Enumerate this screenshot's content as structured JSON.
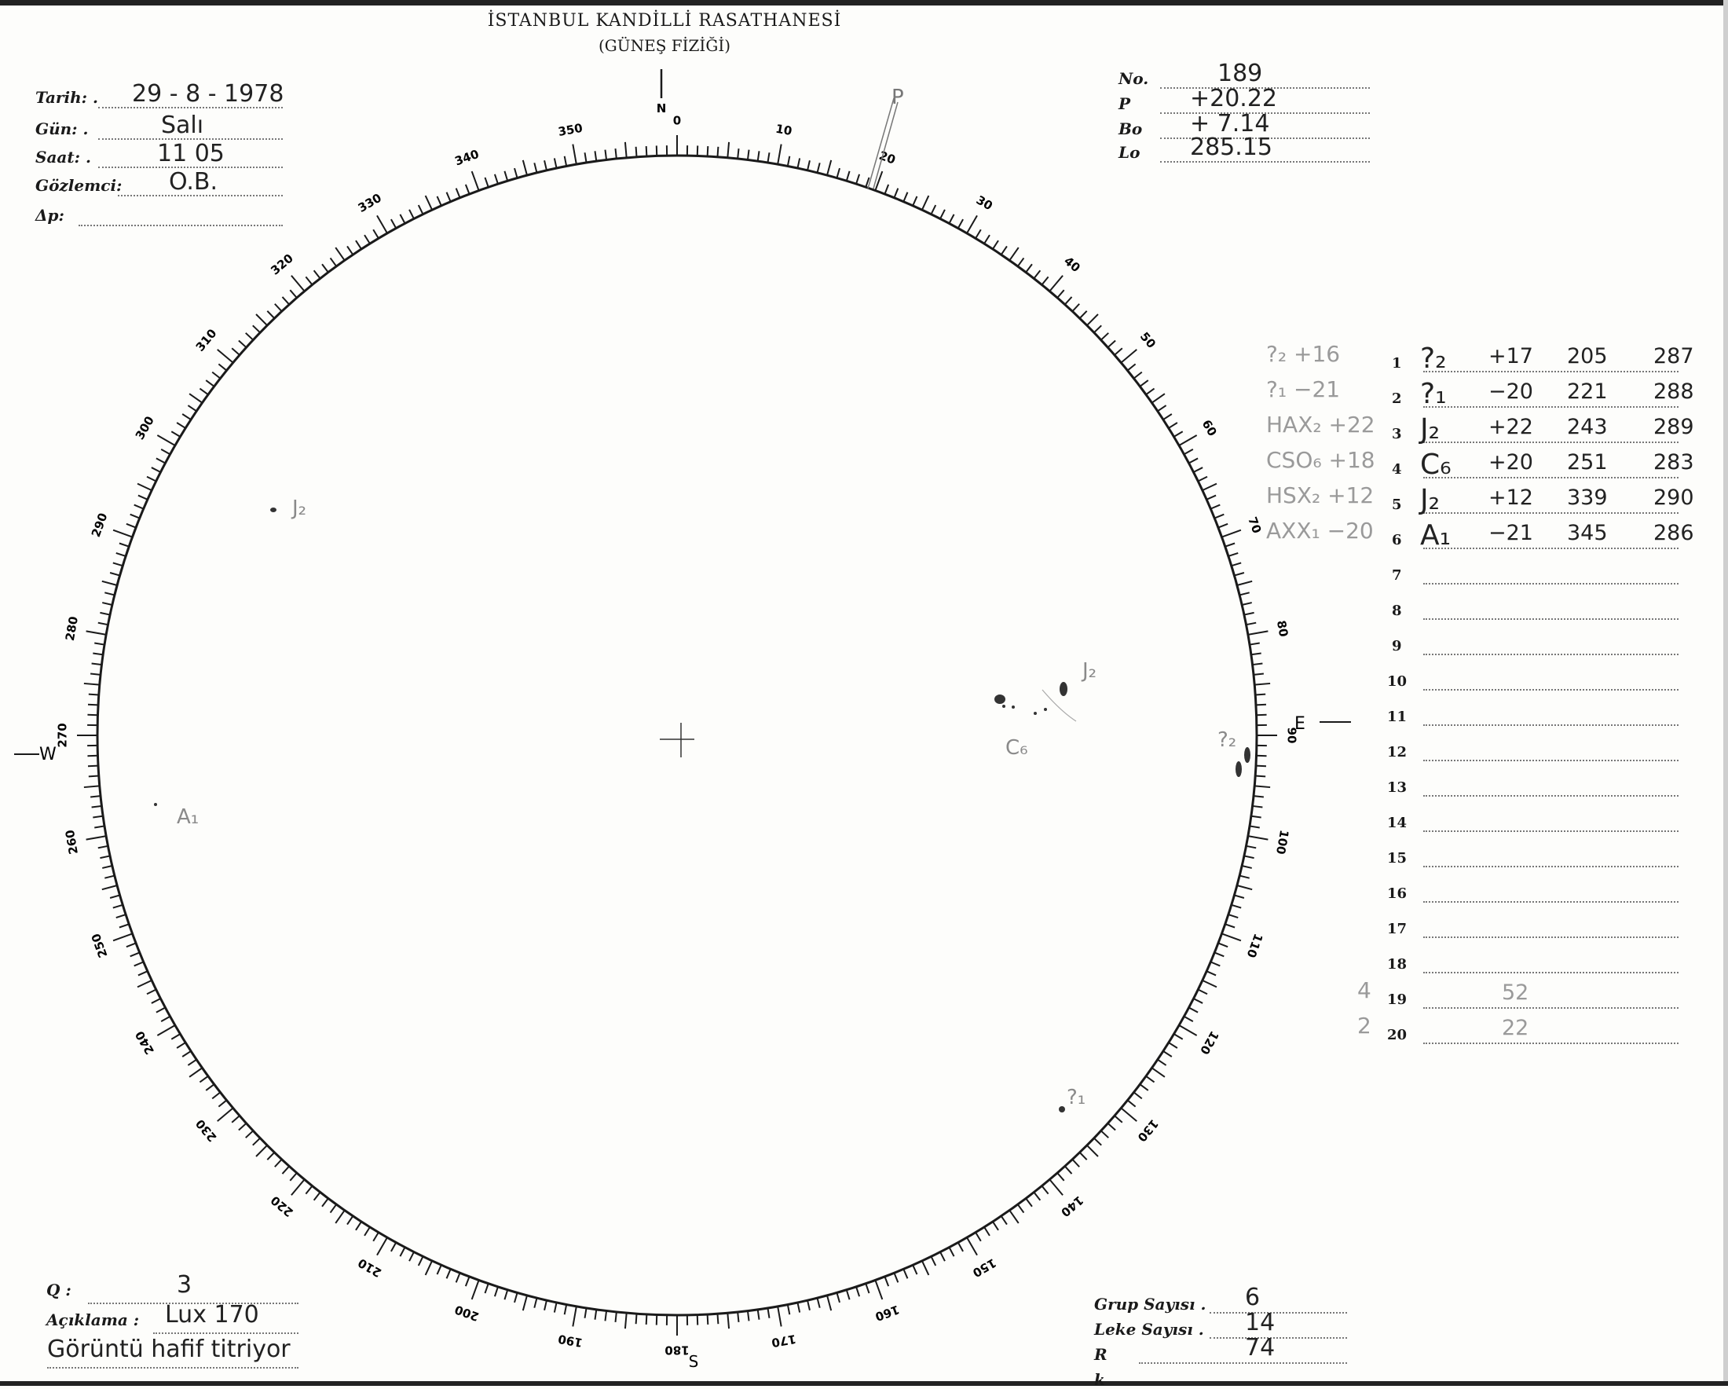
{
  "header": {
    "title": "İSTANBUL KANDİLLİ RASATHANESİ",
    "subtitle": "(GÜNEŞ FİZİĞİ)"
  },
  "left_fields": [
    {
      "label": "Tarih: .",
      "value": "29 - 8 - 1978"
    },
    {
      "label": "Gün: .",
      "value": "Salı"
    },
    {
      "label": "Saat: .",
      "value": "11 05"
    },
    {
      "label": "Gözlemci:",
      "value": "O.B."
    },
    {
      "label": "Δp:",
      "value": ""
    }
  ],
  "right_fields": [
    {
      "label": "No.",
      "value": "189"
    },
    {
      "label": "P",
      "value": "+20.22"
    },
    {
      "label": "Bo",
      "value": "+ 7.14"
    },
    {
      "label": "Lo",
      "value": "285.15"
    }
  ],
  "table": {
    "rows": [
      {
        "n": "1",
        "note": "?₂ +16",
        "group": "?₂",
        "lat": "+17",
        "c2": "205",
        "c3": "287"
      },
      {
        "n": "2",
        "note": "?₁ −21",
        "group": "?₁",
        "lat": "−20",
        "c2": "221",
        "c3": "288"
      },
      {
        "n": "3",
        "note": "HAX₂ +22",
        "group": "J₂",
        "lat": "+22",
        "c2": "243",
        "c3": "289"
      },
      {
        "n": "4",
        "note": "CSO₆ +18",
        "group": "C₆",
        "lat": "+20",
        "c2": "251",
        "c3": "283"
      },
      {
        "n": "5",
        "note": "HSX₂ +12",
        "group": "J₂",
        "lat": "+12",
        "c2": "339",
        "c3": "290"
      },
      {
        "n": "6",
        "note": "AXX₁ −20",
        "group": "A₁",
        "lat": "−21",
        "c2": "345",
        "c3": "286"
      },
      {
        "n": "7"
      },
      {
        "n": "8"
      },
      {
        "n": "9"
      },
      {
        "n": "10"
      },
      {
        "n": "11"
      },
      {
        "n": "12"
      },
      {
        "n": "13"
      },
      {
        "n": "14"
      },
      {
        "n": "15"
      },
      {
        "n": "16"
      },
      {
        "n": "17"
      },
      {
        "n": "18"
      },
      {
        "n": "19",
        "note": "4",
        "group": "",
        "lat": "52"
      },
      {
        "n": "20",
        "note": "2",
        "group": "",
        "lat": "22"
      }
    ]
  },
  "bottom_left": [
    {
      "label": "Q :",
      "value": "3"
    },
    {
      "label": "Açıklama :",
      "value": "Lux  170"
    },
    {
      "label": "",
      "value": "Görüntü  hafif  titriyor"
    }
  ],
  "bottom_right": [
    {
      "label": "Grup Sayısı .",
      "value": "6"
    },
    {
      "label": "Leke Sayısı .",
      "value": "14"
    },
    {
      "label": "R",
      "value": "74"
    },
    {
      "label": "k",
      "value": ""
    }
  ],
  "disk": {
    "compass": {
      "north": "N",
      "east": "E",
      "south": "S",
      "west": "W"
    },
    "degree_labels": [
      "0",
      "10",
      "20",
      "30",
      "40",
      "50",
      "60",
      "70",
      "80",
      "90",
      "100",
      "110",
      "120",
      "130",
      "140",
      "150",
      "160",
      "170",
      "180",
      "190",
      "200",
      "210",
      "220",
      "230",
      "240",
      "250",
      "260",
      "270",
      "280",
      "290",
      "300",
      "310",
      "320",
      "330",
      "340",
      "350"
    ],
    "p_marker": "P",
    "spot_labels": [
      "J₂",
      "J₂",
      "C₆",
      "?₂",
      "?₁",
      "A₁"
    ]
  },
  "colors": {
    "ink": "#1a1a1a",
    "pencil": "#9a9a9a",
    "paper": "#fdfdfb"
  }
}
